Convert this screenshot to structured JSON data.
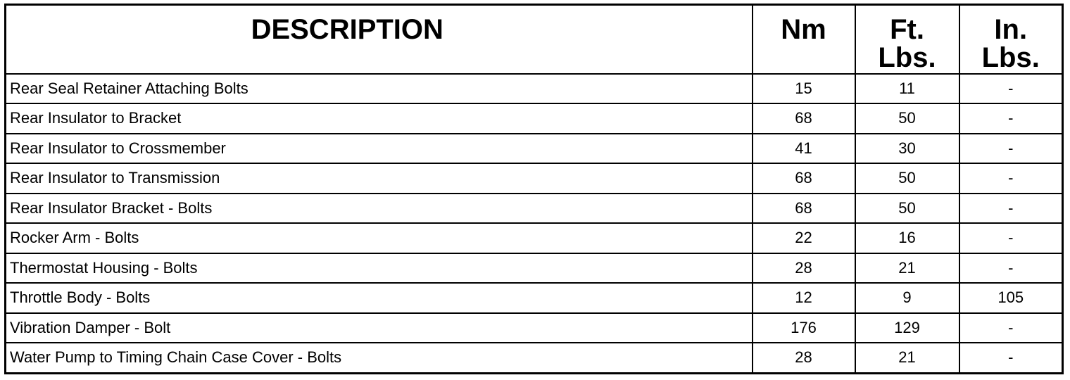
{
  "headers": {
    "description": "DESCRIPTION",
    "nm": "Nm",
    "ft_lbs": "Ft. Lbs.",
    "in_lbs": "In. Lbs."
  },
  "rows": [
    {
      "description": "Rear Seal Retainer Attaching Bolts",
      "nm": "15",
      "ft_lbs": "11",
      "in_lbs": "-"
    },
    {
      "description": "Rear Insulator to Bracket",
      "nm": "68",
      "ft_lbs": "50",
      "in_lbs": "-"
    },
    {
      "description": "Rear Insulator to Crossmember",
      "nm": "41",
      "ft_lbs": "30",
      "in_lbs": "-"
    },
    {
      "description": "Rear Insulator to Transmission",
      "nm": "68",
      "ft_lbs": "50",
      "in_lbs": "-"
    },
    {
      "description": "Rear Insulator Bracket - Bolts",
      "nm": "68",
      "ft_lbs": "50",
      "in_lbs": "-"
    },
    {
      "description": "Rocker Arm - Bolts",
      "nm": "22",
      "ft_lbs": "16",
      "in_lbs": "-"
    },
    {
      "description": "Thermostat Housing - Bolts",
      "nm": "28",
      "ft_lbs": "21",
      "in_lbs": "-"
    },
    {
      "description": "Throttle Body - Bolts",
      "nm": "12",
      "ft_lbs": "9",
      "in_lbs": "105"
    },
    {
      "description": "Vibration Damper - Bolt",
      "nm": "176",
      "ft_lbs": "129",
      "in_lbs": "-"
    },
    {
      "description": "Water Pump to Timing Chain Case Cover - Bolts",
      "nm": "28",
      "ft_lbs": "21",
      "in_lbs": "-"
    }
  ]
}
